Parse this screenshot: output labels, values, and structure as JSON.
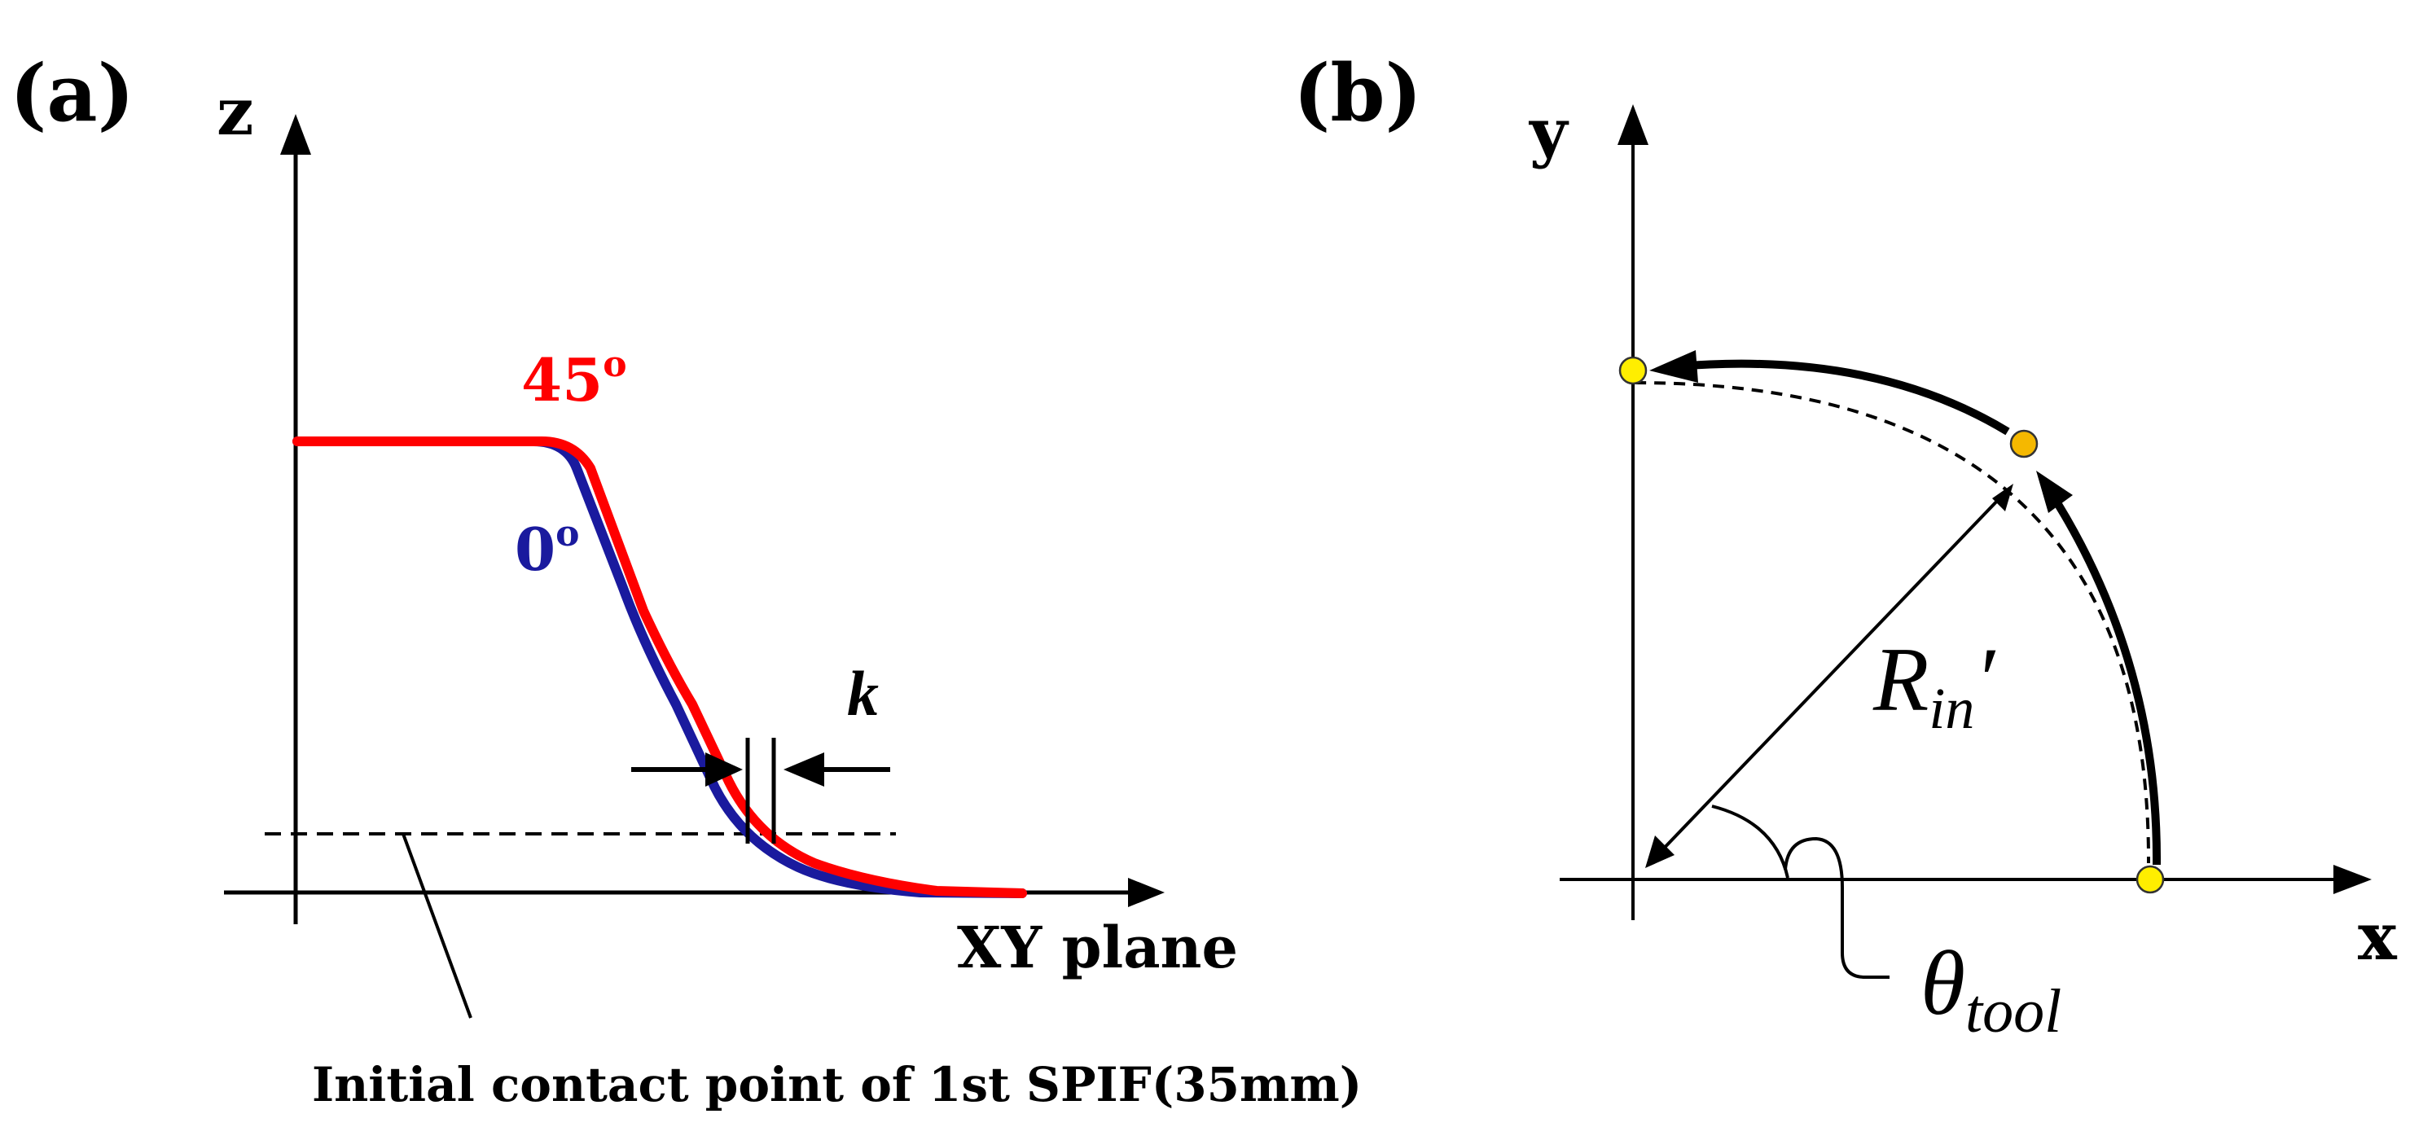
{
  "panel_a": {
    "label": "(a)",
    "z_axis_label": "z",
    "x_axis_label": "XY plane",
    "curve_45": {
      "label": "45",
      "sup": "o",
      "color": "#ff0000"
    },
    "curve_0": {
      "label": "0",
      "sup": "o",
      "color": "#1a1a9e"
    },
    "offset_label": "k",
    "caption": "Initial contact point of 1st SPIF(35mm)"
  },
  "panel_b": {
    "label": "(b)",
    "y_axis_label": "y",
    "x_axis_label": "x",
    "radius_label": "R",
    "radius_sub": "in",
    "radius_prime": "′",
    "angle_label": "θ",
    "angle_sub": "tool",
    "point_colors": {
      "start": "#ffee00",
      "mid": "#f5b800",
      "end": "#ffee00"
    }
  }
}
